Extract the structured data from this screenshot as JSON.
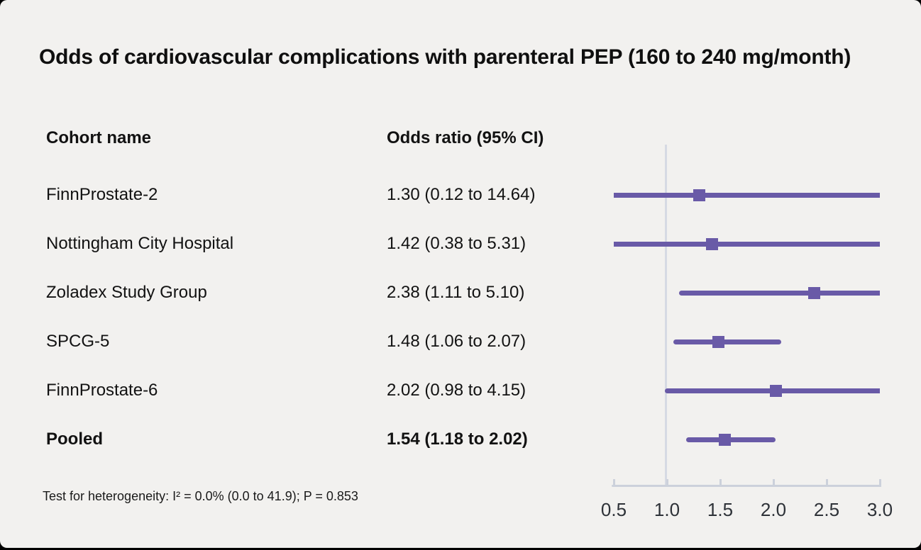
{
  "chart_data": {
    "type": "forest",
    "title": "Odds of cardiovascular complications with parenteral PEP (160 to 240 mg/month)",
    "columns": {
      "cohort": "Cohort name",
      "odds_ratio": "Odds ratio (95% CI)"
    },
    "rows": [
      {
        "cohort": "FinnProstate-2",
        "or_ci": "1.30 (0.12 to 14.64)",
        "or": 1.3,
        "lo": 0.12,
        "hi": 14.64,
        "bold": false
      },
      {
        "cohort": "Nottingham City Hospital",
        "or_ci": "1.42 (0.38 to 5.31)",
        "or": 1.42,
        "lo": 0.38,
        "hi": 5.31,
        "bold": false
      },
      {
        "cohort": "Zoladex Study Group",
        "or_ci": "2.38 (1.11 to 5.10)",
        "or": 2.38,
        "lo": 1.11,
        "hi": 5.1,
        "bold": false
      },
      {
        "cohort": "SPCG-5",
        "or_ci": "1.48 (1.06 to 2.07)",
        "or": 1.48,
        "lo": 1.06,
        "hi": 2.07,
        "bold": false
      },
      {
        "cohort": "FinnProstate-6",
        "or_ci": "2.02 (0.98 to 4.15)",
        "or": 2.02,
        "lo": 0.98,
        "hi": 4.15,
        "bold": false
      },
      {
        "cohort": "Pooled",
        "or_ci": "1.54 (1.18 to 2.02)",
        "or": 1.54,
        "lo": 1.18,
        "hi": 2.02,
        "bold": true
      }
    ],
    "x_ticks": [
      0.5,
      1.0,
      1.5,
      2.0,
      2.5,
      3.0
    ],
    "x_tick_labels": [
      "0.5",
      "1.0",
      "1.5",
      "2.0",
      "2.5",
      "3.0"
    ],
    "xlim": [
      0.5,
      3.0
    ],
    "reference_line": 1.0,
    "grid": false,
    "footnote": "Test for heterogeneity: I² = 0.0% (0.0 to 41.9); P = 0.853"
  },
  "colors": {
    "background": "#f2f1ef",
    "accent_purple": "#695aa7",
    "axis_gray": "#ccd1db",
    "reference_line_gray": "#d6dae3",
    "text_black": "#121212",
    "axis_label_gray": "#2e3238"
  }
}
